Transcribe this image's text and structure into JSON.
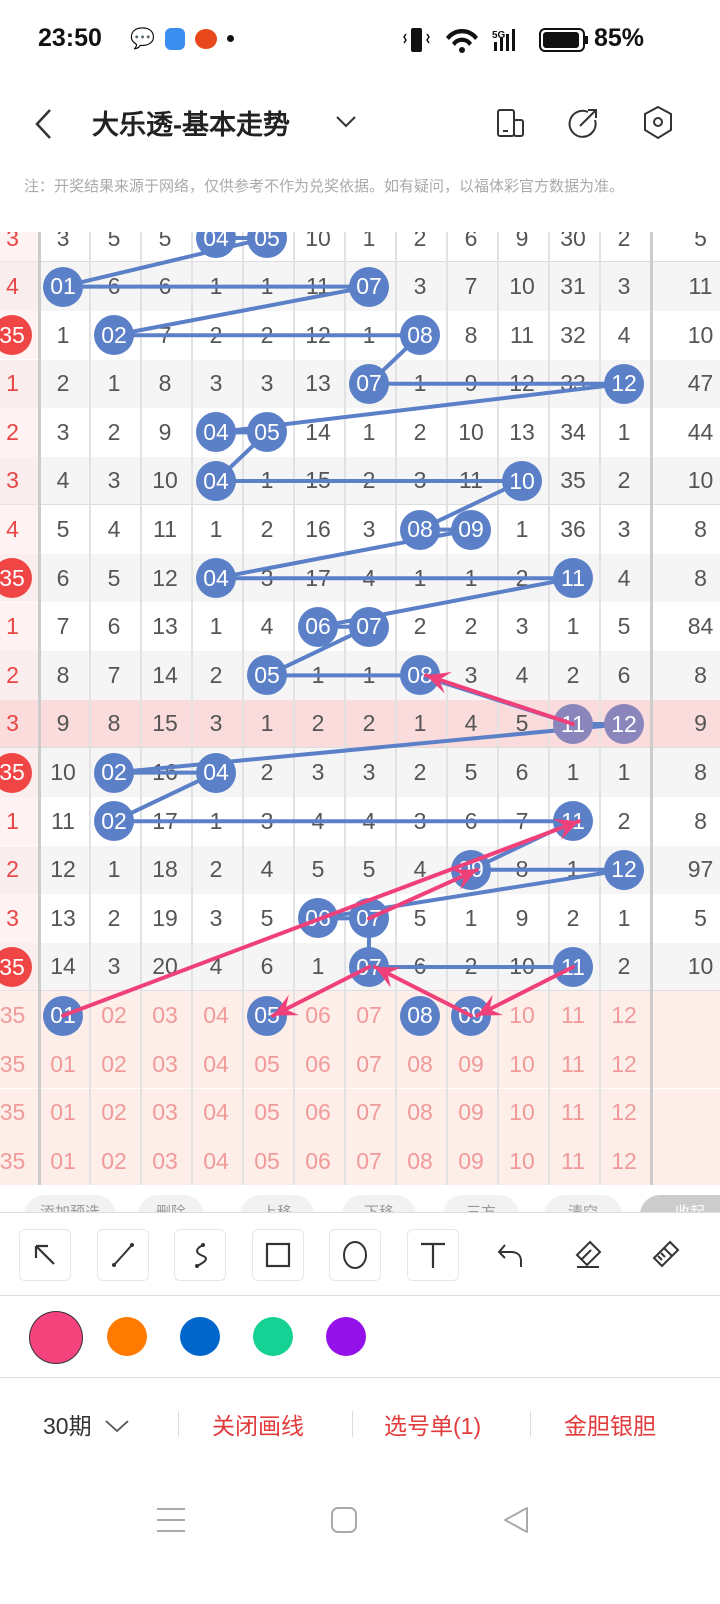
{
  "status_bar": {
    "time": "23:50",
    "battery": "85%",
    "network": "5G",
    "icons": [
      "wechat-icon",
      "app-icon",
      "app-icon",
      "dot-icon",
      "vibrate-icon",
      "wifi-icon",
      "signal-icon",
      "battery-icon"
    ]
  },
  "header": {
    "title": "大乐透-基本走势",
    "icons": [
      "back-icon",
      "chevron-down-icon",
      "device-icon",
      "share-icon",
      "settings-icon"
    ]
  },
  "note": "注：开奖结果来源于网络，仅供参考不作为兑奖依据。如有疑问，以福体彩官方数据为准。",
  "colors": {
    "ball": "#5b80c8",
    "line": "#5b80c8",
    "arrow": "#f0407a",
    "left_text": "#e84545",
    "red_ball": "#f04545",
    "highlight_row": "#fadcdc",
    "preselect_bg": "#fdeee9",
    "preselect_text": "#f19a9a"
  },
  "grid": {
    "rows": [
      {
        "left": "3",
        "cells": [
          "3",
          "5",
          "5",
          "04",
          "05",
          "10",
          "1",
          "2",
          "6",
          "9",
          "30",
          "2"
        ],
        "balls": [
          3,
          4
        ],
        "right": "5"
      },
      {
        "left": "4",
        "cells": [
          "01",
          "6",
          "6",
          "1",
          "1",
          "11",
          "07",
          "3",
          "7",
          "10",
          "31",
          "3"
        ],
        "balls": [
          0,
          6
        ],
        "right": "11"
      },
      {
        "left": "35",
        "left_ball": true,
        "cells": [
          "1",
          "02",
          "7",
          "2",
          "2",
          "12",
          "1",
          "08",
          "8",
          "11",
          "32",
          "4"
        ],
        "balls": [
          1,
          7
        ],
        "right": "10"
      },
      {
        "left": "1",
        "cells": [
          "2",
          "1",
          "8",
          "3",
          "3",
          "13",
          "07",
          "1",
          "9",
          "12",
          "33",
          "12"
        ],
        "balls": [
          6,
          11
        ],
        "right": "47"
      },
      {
        "left": "2",
        "cells": [
          "3",
          "2",
          "9",
          "04",
          "05",
          "14",
          "1",
          "2",
          "10",
          "13",
          "34",
          "1"
        ],
        "balls": [
          3,
          4
        ],
        "right": "44"
      },
      {
        "left": "3",
        "cells": [
          "4",
          "3",
          "10",
          "04",
          "1",
          "15",
          "2",
          "3",
          "11",
          "10",
          "35",
          "2"
        ],
        "balls": [
          3,
          9
        ],
        "right": "10"
      },
      {
        "left": "4",
        "cells": [
          "5",
          "4",
          "11",
          "1",
          "2",
          "16",
          "3",
          "08",
          "09",
          "1",
          "36",
          "3"
        ],
        "balls": [
          7,
          8
        ],
        "right": "8"
      },
      {
        "left": "35",
        "left_ball": true,
        "cells": [
          "6",
          "5",
          "12",
          "04",
          "3",
          "17",
          "4",
          "1",
          "1",
          "2",
          "11",
          "4"
        ],
        "balls": [
          3,
          10
        ],
        "right": "8"
      },
      {
        "left": "1",
        "cells": [
          "7",
          "6",
          "13",
          "1",
          "4",
          "06",
          "07",
          "2",
          "2",
          "3",
          "1",
          "5"
        ],
        "balls": [
          5,
          6
        ],
        "right": "84"
      },
      {
        "left": "2",
        "cells": [
          "8",
          "7",
          "14",
          "2",
          "05",
          "1",
          "1",
          "08",
          "3",
          "4",
          "2",
          "6"
        ],
        "balls": [
          4,
          7
        ],
        "right": "8"
      },
      {
        "left": "3",
        "highlight": true,
        "cells": [
          "9",
          "8",
          "15",
          "3",
          "1",
          "2",
          "2",
          "1",
          "4",
          "5",
          "11",
          "12"
        ],
        "balls": [
          10,
          11
        ],
        "right": "9"
      },
      {
        "left": "35",
        "left_ball": true,
        "cells": [
          "10",
          "02",
          "16",
          "04",
          "2",
          "3",
          "3",
          "2",
          "5",
          "6",
          "1",
          "1"
        ],
        "balls": [
          1,
          3
        ],
        "right": "8"
      },
      {
        "left": "1",
        "cells": [
          "11",
          "02",
          "17",
          "1",
          "3",
          "4",
          "4",
          "3",
          "6",
          "7",
          "11",
          "2"
        ],
        "balls": [
          1,
          10
        ],
        "right": "8"
      },
      {
        "left": "2",
        "cells": [
          "12",
          "1",
          "18",
          "2",
          "4",
          "5",
          "5",
          "4",
          "09",
          "8",
          "1",
          "12"
        ],
        "balls": [
          8,
          11
        ],
        "right": "97"
      },
      {
        "left": "3",
        "cells": [
          "13",
          "2",
          "19",
          "3",
          "5",
          "06",
          "07",
          "5",
          "1",
          "9",
          "2",
          "1"
        ],
        "balls": [
          5,
          6
        ],
        "right": "5"
      },
      {
        "left": "35",
        "left_ball": true,
        "cells": [
          "14",
          "3",
          "20",
          "4",
          "6",
          "1",
          "07",
          "6",
          "2",
          "10",
          "11",
          "2"
        ],
        "balls": [
          6,
          10
        ],
        "right": "10"
      },
      {
        "left": "35",
        "preselect": true,
        "cells": [
          "01",
          "02",
          "03",
          "04",
          "05",
          "06",
          "07",
          "08",
          "09",
          "10",
          "11",
          "12"
        ],
        "balls": [
          0,
          4,
          7,
          8
        ],
        "right": ""
      },
      {
        "left": "35",
        "preselect": true,
        "cells": [
          "01",
          "02",
          "03",
          "04",
          "05",
          "06",
          "07",
          "08",
          "09",
          "10",
          "11",
          "12"
        ],
        "balls": [],
        "right": ""
      },
      {
        "left": "35",
        "preselect": true,
        "cells": [
          "01",
          "02",
          "03",
          "04",
          "05",
          "06",
          "07",
          "08",
          "09",
          "10",
          "11",
          "12"
        ],
        "balls": [],
        "right": ""
      },
      {
        "left": "35",
        "preselect": true,
        "cells": [
          "01",
          "02",
          "03",
          "04",
          "05",
          "06",
          "07",
          "08",
          "09",
          "10",
          "11",
          "12"
        ],
        "balls": [],
        "right": ""
      }
    ]
  },
  "action_pills": [
    "添加预选",
    "删除",
    "上移",
    "下移",
    "三方",
    "清空",
    "收起"
  ],
  "draw_tools": [
    {
      "name": "arrow-tool",
      "icon": "arrow-up-left-icon"
    },
    {
      "name": "line-tool",
      "icon": "line-icon"
    },
    {
      "name": "curve-tool",
      "icon": "curve-icon"
    },
    {
      "name": "rectangle-tool",
      "icon": "square-icon"
    },
    {
      "name": "circle-tool",
      "icon": "circle-icon"
    },
    {
      "name": "text-tool",
      "icon": "text-icon"
    },
    {
      "name": "undo-tool",
      "icon": "undo-icon"
    },
    {
      "name": "eraser-tool",
      "icon": "eraser-icon"
    },
    {
      "name": "clear-tool",
      "icon": "brush-icon"
    }
  ],
  "pen_colors": [
    {
      "hex": "#f5437d",
      "selected": true
    },
    {
      "hex": "#ff7a00"
    },
    {
      "hex": "#0066cc"
    },
    {
      "hex": "#16d194"
    },
    {
      "hex": "#9411ea"
    }
  ],
  "bottom_bar": {
    "period": "30期",
    "close_draw": "关闭画线",
    "selection": "选号单(1)",
    "dan": "金胆银胆"
  }
}
